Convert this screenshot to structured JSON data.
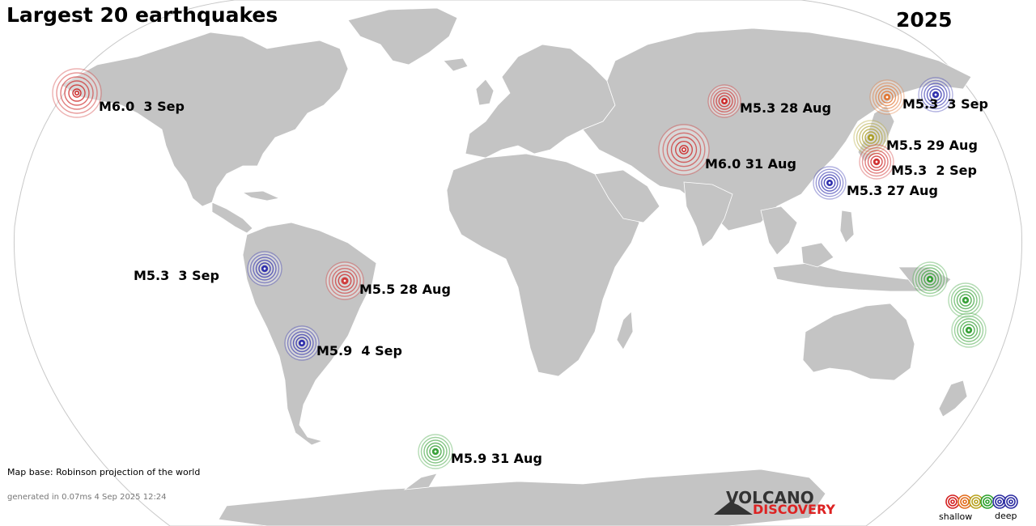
{
  "title": "Largest 20 earthquakes",
  "year": "2025",
  "map_base_note": "Map base: Robinson projection of the world",
  "generated_note": "generated in 0.07ms  4 Sep 2025 12:24",
  "logo": {
    "line1": "VOLCANO",
    "line2": "DISCOVERY"
  },
  "legend": {
    "shallow": "shallow",
    "deep": "deep",
    "colors": [
      "#d32020",
      "#e26a1a",
      "#b7a21e",
      "#2aa02a",
      "#2a2aa0",
      "#2a2aa0"
    ]
  },
  "colors": {
    "land": "#c4c4c4",
    "ocean": "#ffffff",
    "depth_very_shallow": "#cc2222",
    "depth_shallow": "#e0702a",
    "depth_intermediate": "#a89a1e",
    "depth_mid": "#2a9a2a",
    "depth_deep": "#2424a8"
  },
  "earthquakes": [
    {
      "id": "alaska",
      "label": "M6.0  3 Sep",
      "depth_class": "depth_very_shallow"
    },
    {
      "id": "mongolia",
      "label": "M5.3 28 Aug",
      "depth_class": "depth_very_shallow"
    },
    {
      "id": "kuril",
      "label": "M5.3  3 Sep",
      "depth_class": "depth_deep"
    },
    {
      "id": "hokkaido",
      "label": "",
      "depth_class": "depth_shallow"
    },
    {
      "id": "japan-center",
      "label": "M5.5 29 Aug",
      "depth_class": "depth_intermediate"
    },
    {
      "id": "japan-south",
      "label": "M5.3  2 Sep",
      "depth_class": "depth_very_shallow"
    },
    {
      "id": "afghanistan",
      "label": "M6.0 31 Aug",
      "depth_class": "depth_very_shallow"
    },
    {
      "id": "taiwan",
      "label": "M5.3 27 Aug",
      "depth_class": "depth_deep"
    },
    {
      "id": "peru",
      "label": "M5.3  3 Sep",
      "depth_class": "depth_deep"
    },
    {
      "id": "brazil",
      "label": "M5.5 28 Aug",
      "depth_class": "depth_very_shallow"
    },
    {
      "id": "bolivia",
      "label": "M5.9  4 Sep",
      "depth_class": "depth_deep"
    },
    {
      "id": "south-sandwich",
      "label": "M5.9 31 Aug",
      "depth_class": "depth_mid"
    },
    {
      "id": "png",
      "label": "",
      "depth_class": "depth_mid"
    },
    {
      "id": "solomon",
      "label": "",
      "depth_class": "depth_mid"
    },
    {
      "id": "vanuatu",
      "label": "",
      "depth_class": "depth_mid"
    }
  ]
}
